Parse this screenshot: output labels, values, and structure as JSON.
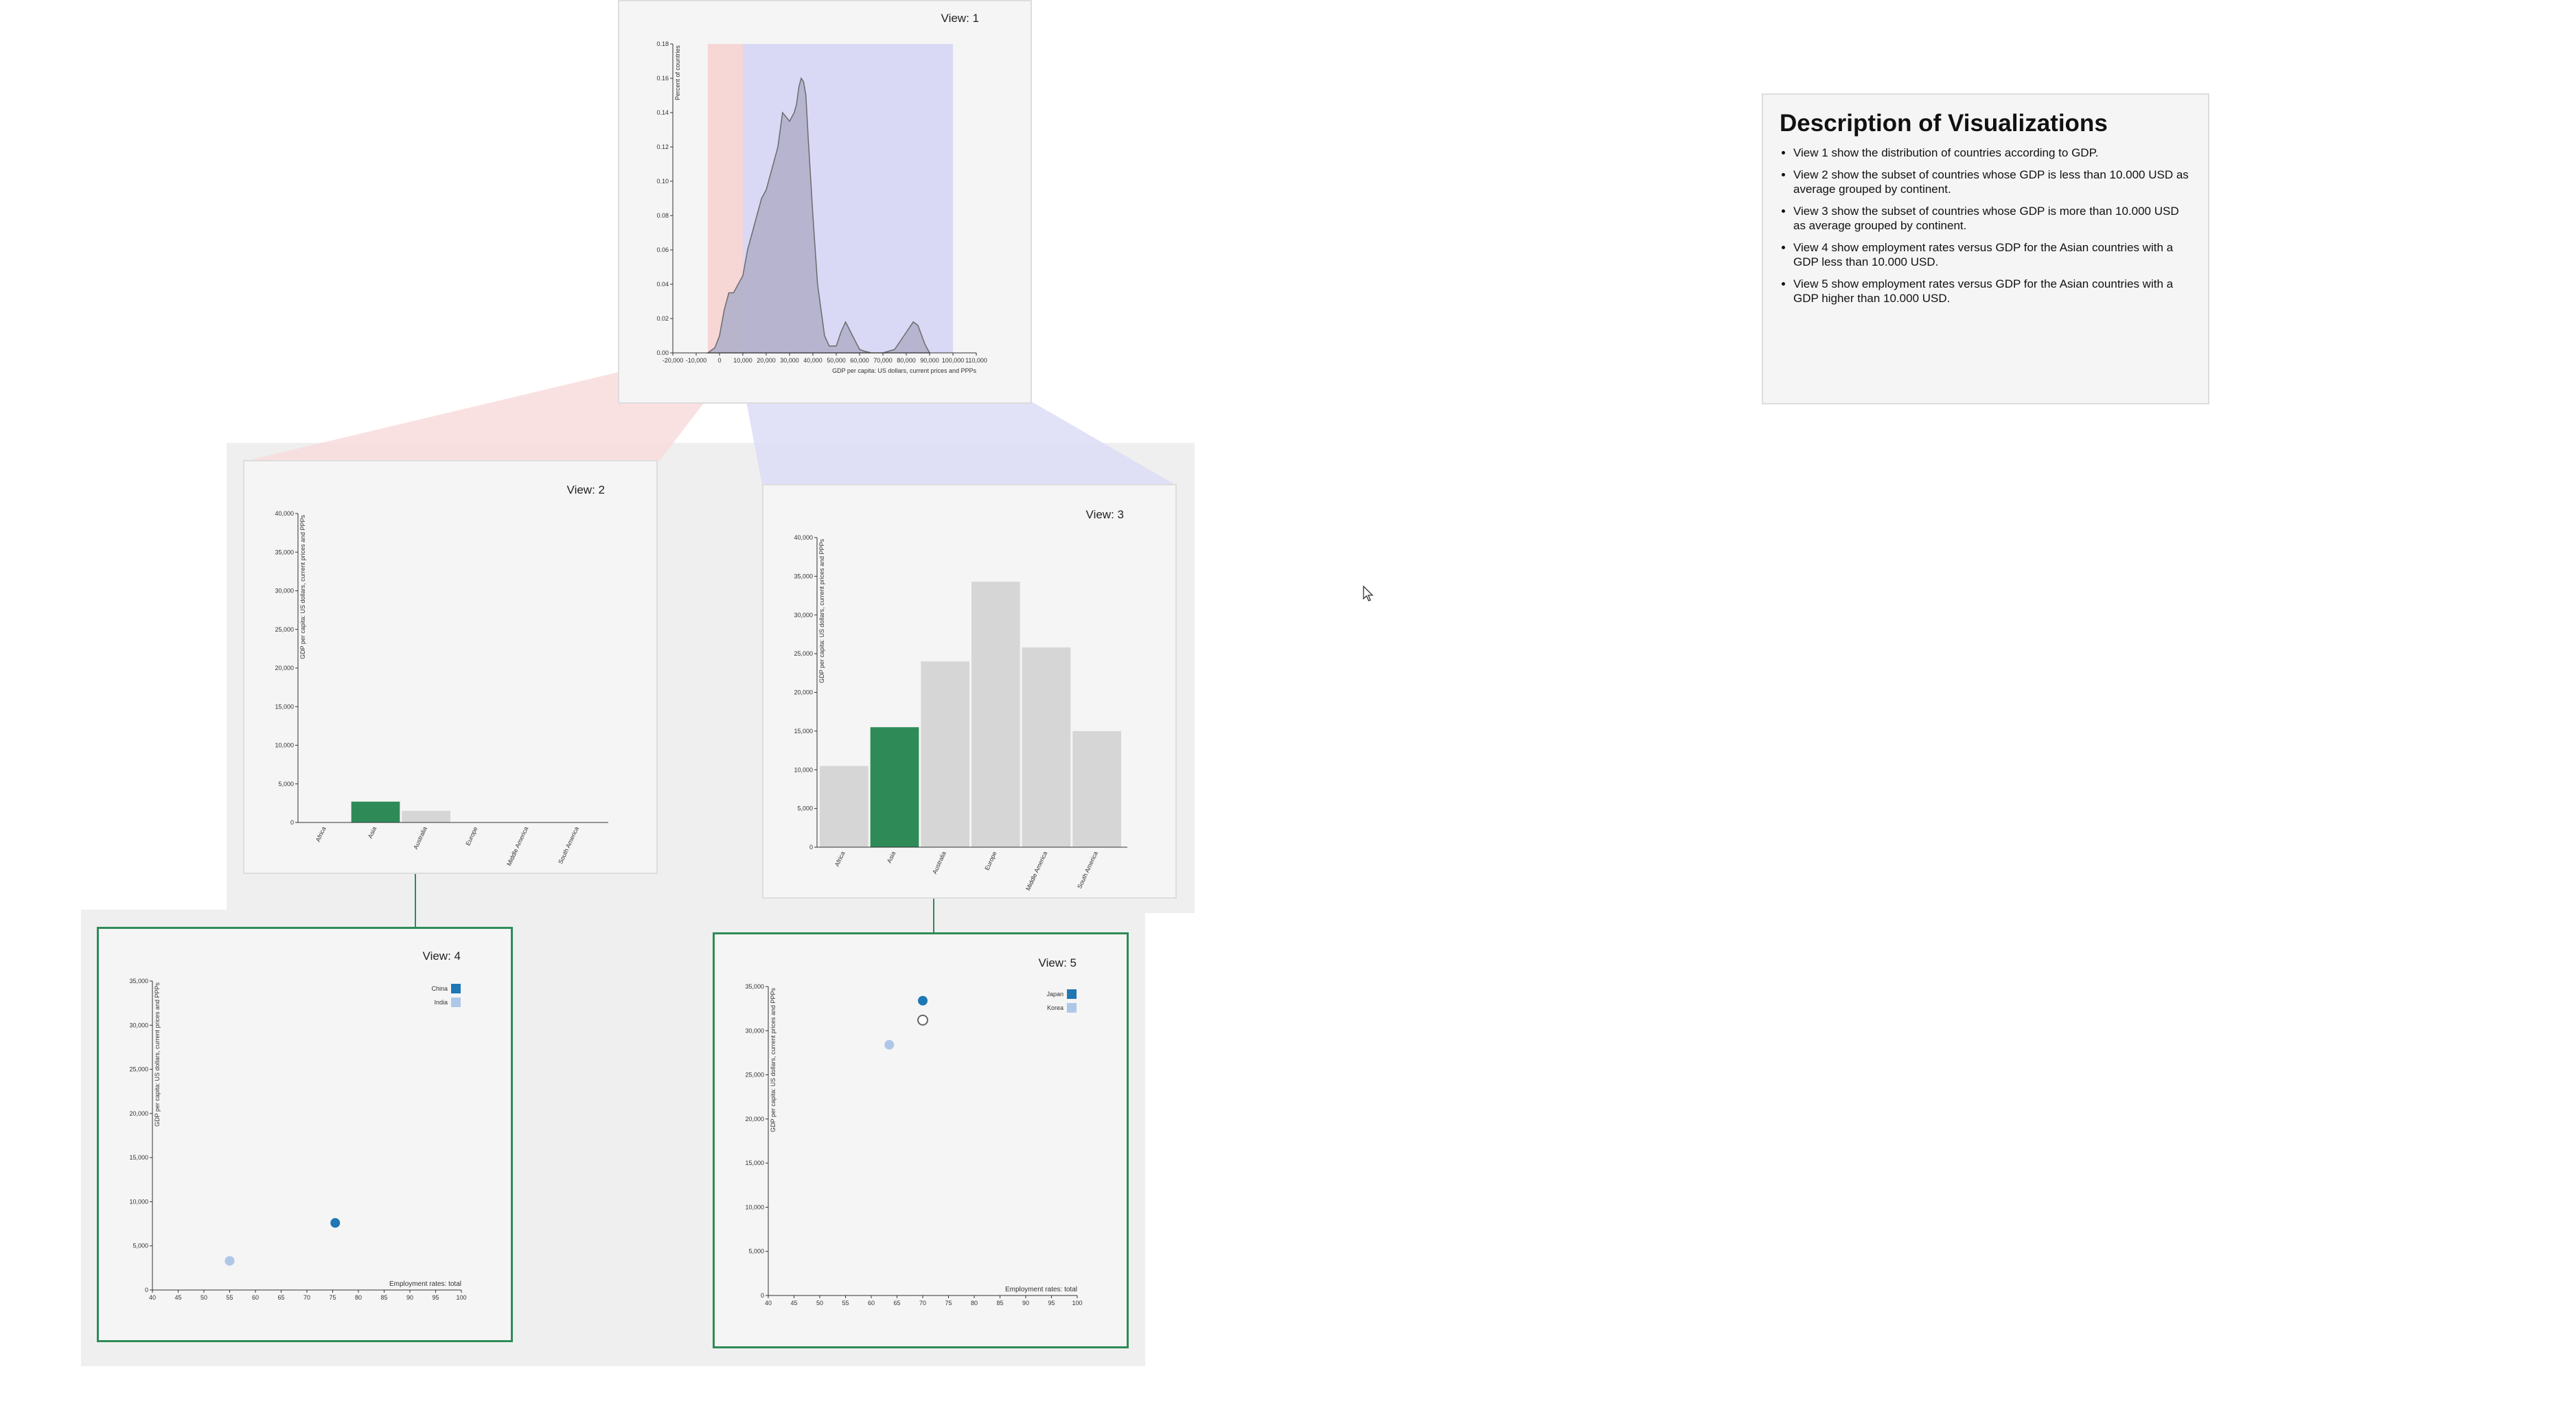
{
  "views": {
    "v1": {
      "title": "View: 1",
      "ylabel": "Percent of countries",
      "xlabel": "GDP per capita: US dollars, current prices and PPPs",
      "yticks": [
        "0.00",
        "0.02",
        "0.04",
        "0.06",
        "0.08",
        "0.10",
        "0.12",
        "0.14",
        "0.16",
        "0.18"
      ],
      "xticks": [
        "-20,000",
        "-10,000",
        "0",
        "10,000",
        "20,000",
        "30,000",
        "40,000",
        "50,000",
        "60,000",
        "70,000",
        "80,000",
        "90,000",
        "100,000",
        "110,000"
      ],
      "chart_data": {
        "type": "area",
        "x": [
          -5000,
          -2000,
          0,
          2000,
          4000,
          6000,
          8000,
          10000,
          12000,
          15000,
          18000,
          20000,
          22000,
          25000,
          27000,
          30000,
          32000,
          33000,
          34000,
          35000,
          36000,
          37000,
          38000,
          40000,
          42000,
          45000,
          47000,
          50000,
          52000,
          54000,
          57000,
          60000,
          62000,
          65000,
          70000,
          75000,
          80000,
          83000,
          85000,
          88000,
          90000
        ],
        "y": [
          0,
          0.003,
          0.01,
          0.025,
          0.035,
          0.035,
          0.04,
          0.045,
          0.06,
          0.075,
          0.09,
          0.095,
          0.105,
          0.12,
          0.14,
          0.135,
          0.14,
          0.145,
          0.155,
          0.16,
          0.158,
          0.15,
          0.125,
          0.08,
          0.04,
          0.01,
          0.004,
          0.004,
          0.012,
          0.018,
          0.01,
          0.002,
          0.001,
          0.0,
          0.0,
          0.002,
          0.012,
          0.018,
          0.016,
          0.005,
          0
        ],
        "highlight_low": [
          -5000,
          10000
        ],
        "highlight_high": [
          10000,
          100000
        ],
        "xlim": [
          -20000,
          110000
        ],
        "ylim": [
          0,
          0.18
        ]
      }
    },
    "v2": {
      "title": "View: 2",
      "ylabel": "GDP per capita: US dollars, current prices and PPPs",
      "yticks": [
        "0",
        "5,000",
        "10,000",
        "15,000",
        "20,000",
        "25,000",
        "30,000",
        "35,000",
        "40,000"
      ],
      "chart_data": {
        "type": "bar",
        "categories": [
          "Africa",
          "Asia",
          "Australia",
          "Europe",
          "Middle America",
          "South America"
        ],
        "values": [
          0,
          2700,
          1500,
          0,
          0,
          0
        ],
        "selected": "Asia",
        "ylim": [
          0,
          40000
        ]
      }
    },
    "v3": {
      "title": "View: 3",
      "ylabel": "GDP per capita: US dollars, current prices and PPPs",
      "yticks": [
        "0",
        "5,000",
        "10,000",
        "15,000",
        "20,000",
        "25,000",
        "30,000",
        "35,000",
        "40,000"
      ],
      "chart_data": {
        "type": "bar",
        "categories": [
          "Africa",
          "Asia",
          "Australia",
          "Europe",
          "Middle America",
          "South America"
        ],
        "values": [
          10500,
          15500,
          24000,
          34300,
          25800,
          15000
        ],
        "selected": "Asia",
        "ylim": [
          0,
          40000
        ]
      }
    },
    "v4": {
      "title": "View: 4",
      "ylabel": "GDP per capita: US dollars, current prices and PPPs",
      "xlabel": "Employment rates: total",
      "yticks": [
        "0",
        "5,000",
        "10,000",
        "15,000",
        "20,000",
        "25,000",
        "30,000",
        "35,000"
      ],
      "xticks": [
        "40",
        "45",
        "50",
        "55",
        "60",
        "65",
        "70",
        "75",
        "80",
        "85",
        "90",
        "95",
        "100"
      ],
      "legend": [
        {
          "name": "China",
          "color": "#1f77b4"
        },
        {
          "name": "India",
          "color": "#aec7e8"
        }
      ],
      "chart_data": {
        "type": "scatter",
        "series": [
          {
            "name": "China",
            "x": [
              75.5
            ],
            "y": [
              7600
            ]
          },
          {
            "name": "India",
            "x": [
              55
            ],
            "y": [
              3300
            ]
          }
        ],
        "xlim": [
          40,
          100
        ],
        "ylim": [
          0,
          35000
        ]
      }
    },
    "v5": {
      "title": "View: 5",
      "ylabel": "GDP per capita: US dollars, current prices and PPPs",
      "xlabel": "Employment rates: total",
      "yticks": [
        "0",
        "5,000",
        "10,000",
        "15,000",
        "20,000",
        "25,000",
        "30,000",
        "35,000"
      ],
      "xticks": [
        "40",
        "45",
        "50",
        "55",
        "60",
        "65",
        "70",
        "75",
        "80",
        "85",
        "90",
        "95",
        "100"
      ],
      "legend": [
        {
          "name": "Japan",
          "color": "#1f77b4"
        },
        {
          "name": "Korea",
          "color": "#aec7e8"
        }
      ],
      "chart_data": {
        "type": "scatter",
        "series": [
          {
            "name": "Japan",
            "x": [
              70,
              70
            ],
            "y": [
              33400,
              31200
            ],
            "hollow": [
              false,
              true
            ]
          },
          {
            "name": "Korea",
            "x": [
              63.5
            ],
            "y": [
              28400
            ]
          }
        ],
        "xlim": [
          40,
          100
        ],
        "ylim": [
          0,
          35000
        ]
      }
    }
  },
  "description": {
    "title": "Description of Visualizations",
    "items": [
      "View 1 show the distribution of countries according to GDP.",
      "View 2 show the subset of countries whose GDP is less than 10.000 USD as average grouped by continent.",
      "View 3 show the subset of countries whose GDP is more than 10.000 USD as average grouped by continent.",
      "View 4 show employment rates versus GDP for the Asian countries with a GDP less than 10.000 USD.",
      "View 5 show employment rates versus GDP for the Asian countries with a GDP higher than 10.000 USD."
    ]
  },
  "colors": {
    "low": "#f7d6d6",
    "high": "#d9d9f5",
    "selected": "#2e8b57",
    "bar": "#d6d6d6",
    "density": "#b5b3cc"
  }
}
